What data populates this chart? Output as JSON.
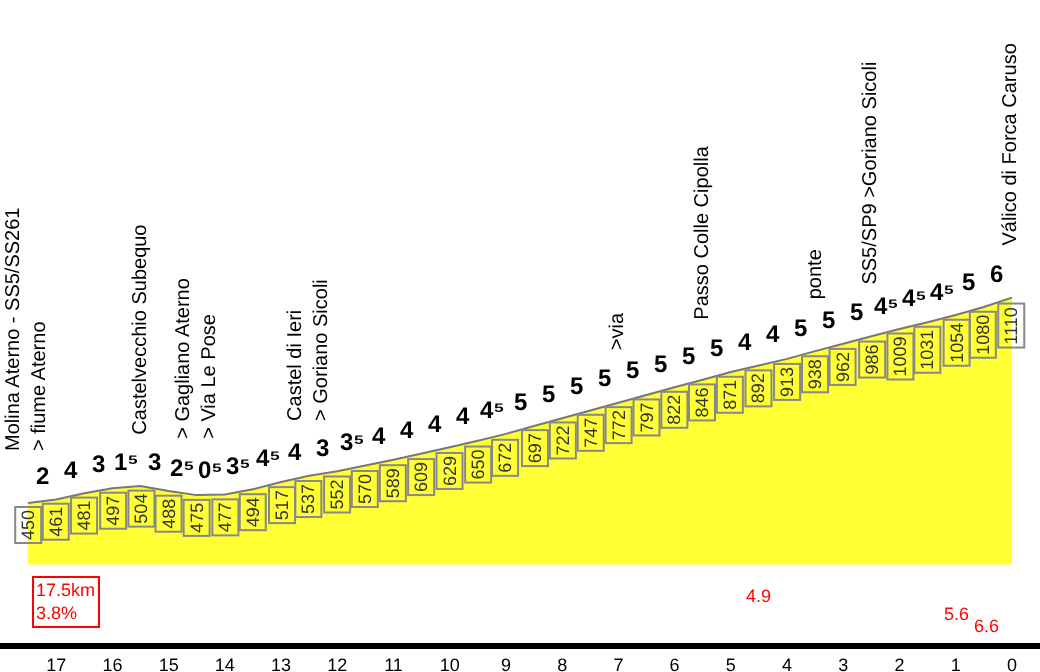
{
  "chart_data": {
    "type": "area",
    "x": [
      17.5,
      17,
      16.5,
      16,
      15.5,
      15,
      14.5,
      14,
      13.5,
      13,
      12.5,
      12,
      11.5,
      11,
      10.5,
      10,
      9.5,
      9,
      8.5,
      8,
      7.5,
      7,
      6.5,
      6,
      5.5,
      5,
      4.5,
      4,
      3.5,
      3,
      2.5,
      2,
      1.5,
      1,
      0.5,
      0
    ],
    "series": [
      {
        "color": "#ffff33",
        "values": [
          450,
          461,
          481,
          497,
          504,
          488,
          475,
          477,
          494,
          517,
          537,
          552,
          570,
          589,
          609,
          629,
          650,
          672,
          697,
          722,
          747,
          772,
          797,
          822,
          846,
          871,
          892,
          913,
          938,
          962,
          986,
          1009,
          1031,
          1054,
          1080,
          1110
        ]
      }
    ],
    "data_labels": true,
    "xlim": [
      18,
      -0.5
    ],
    "xticks": [
      17,
      16,
      15,
      14,
      13,
      12,
      11,
      10,
      9,
      8,
      7,
      6,
      5,
      4,
      3,
      2,
      1,
      0
    ],
    "tick_labels": "x",
    "grid": false,
    "annotations": [
      {
        "text": "2",
        "x": 17.25,
        "y": 461
      },
      {
        "text": "4",
        "x": 16.75,
        "y": 481
      },
      {
        "text": "3",
        "x": 16.25,
        "y": 497
      },
      {
        "text": "1⁵",
        "x": 15.75,
        "y": 504
      },
      {
        "text": "3",
        "x": 15.25,
        "y": 504
      },
      {
        "text": "2⁵",
        "x": 14.75,
        "y": 488
      },
      {
        "text": "0⁵",
        "x": 14.25,
        "y": 477
      },
      {
        "text": "3⁵",
        "x": 13.75,
        "y": 494
      },
      {
        "text": "4⁵",
        "x": 13.25,
        "y": 517
      },
      {
        "text": "4",
        "x": 12.75,
        "y": 537
      },
      {
        "text": "3",
        "x": 12.25,
        "y": 552
      },
      {
        "text": "3⁵",
        "x": 11.75,
        "y": 570
      },
      {
        "text": "4",
        "x": 11.25,
        "y": 589
      },
      {
        "text": "4",
        "x": 10.75,
        "y": 609
      },
      {
        "text": "4",
        "x": 10.25,
        "y": 629
      },
      {
        "text": "4",
        "x": 9.75,
        "y": 650
      },
      {
        "text": "4⁵",
        "x": 9.25,
        "y": 672
      },
      {
        "text": "5",
        "x": 8.75,
        "y": 697
      },
      {
        "text": "5",
        "x": 8.25,
        "y": 722
      },
      {
        "text": "5",
        "x": 7.75,
        "y": 747
      },
      {
        "text": "5",
        "x": 7.25,
        "y": 772
      },
      {
        "text": "5",
        "x": 6.75,
        "y": 797
      },
      {
        "text": "5",
        "x": 6.25,
        "y": 822
      },
      {
        "text": "5",
        "x": 5.75,
        "y": 846
      },
      {
        "text": "5",
        "x": 5.25,
        "y": 871
      },
      {
        "text": "4",
        "x": 4.75,
        "y": 892
      },
      {
        "text": "4",
        "x": 4.25,
        "y": 913
      },
      {
        "text": "5",
        "x": 3.75,
        "y": 938
      },
      {
        "text": "5",
        "x": 3.25,
        "y": 962
      },
      {
        "text": "5",
        "x": 2.75,
        "y": 986
      },
      {
        "text": "4⁵",
        "x": 2.25,
        "y": 1009
      },
      {
        "text": "4⁵",
        "x": 1.75,
        "y": 1031
      },
      {
        "text": "4⁵",
        "x": 1.25,
        "y": 1054
      },
      {
        "text": "5",
        "x": 0.75,
        "y": 1080
      },
      {
        "text": "6",
        "x": 0.25,
        "y": 1110
      },
      {
        "text": "Molina Aterno - SS5/SS261\n> fiume Aterno",
        "x": 17.5,
        "y": 450
      },
      {
        "text": "Castelvecchio Subequo",
        "x": 15.5,
        "y": 504
      },
      {
        "text": "> Gagliano Aterno\n> Via Le Pose",
        "x": 14.5,
        "y": 488
      },
      {
        "text": "Castel di Ieri\n> Goriano Sicoli",
        "x": 12.5,
        "y": 547
      },
      {
        "text": ">via",
        "x": 7,
        "y": 772
      },
      {
        "text": "Passo Colle Cipolla",
        "x": 5.5,
        "y": 871
      },
      {
        "text": "ponte",
        "x": 3.5,
        "y": 938
      },
      {
        "text": "SS5/SP9 >Goriano Sicoli",
        "x": 2.5,
        "y": 986
      },
      {
        "text": "Válico di Forca Caruso",
        "x": 0,
        "y": 1110
      },
      "17.5km\n3.8%",
      "4.9",
      "5.6",
      "6.6"
    ]
  }
}
